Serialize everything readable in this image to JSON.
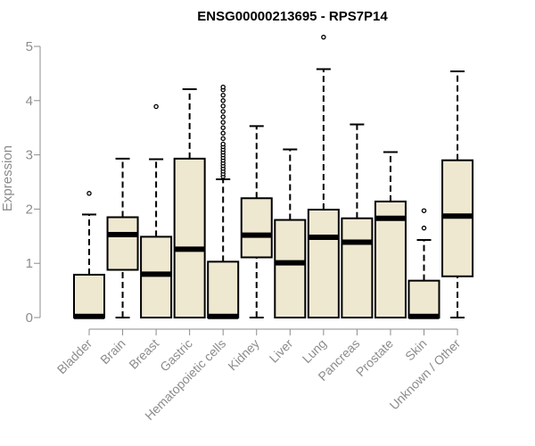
{
  "chart_data": {
    "type": "boxplot",
    "title": "ENSG00000213695 - RPS7P14",
    "xlabel": "",
    "ylabel": "Expression",
    "ylim": [
      0,
      5.1
    ],
    "yticks": [
      0,
      1,
      2,
      3,
      4,
      5
    ],
    "grid": false,
    "categories": [
      "Bladder",
      "Brain",
      "Breast",
      "Gastric",
      "Hematopoietic cells",
      "Kidney",
      "Liver",
      "Lung",
      "Pancreas",
      "Prostate",
      "Skin",
      "Unknown / Other"
    ],
    "boxes": [
      {
        "name": "Bladder",
        "min": 0,
        "q1": 0,
        "median": 0.02,
        "q3": 0.79,
        "max": 1.9,
        "outliers": [
          2.29
        ]
      },
      {
        "name": "Brain",
        "min": 0,
        "q1": 0.88,
        "median": 1.53,
        "q3": 1.85,
        "max": 2.93,
        "outliers": []
      },
      {
        "name": "Breast",
        "min": 0,
        "q1": 0,
        "median": 0.8,
        "q3": 1.49,
        "max": 2.92,
        "outliers": [
          3.89
        ]
      },
      {
        "name": "Gastric",
        "min": 0,
        "q1": 0,
        "median": 1.26,
        "q3": 2.93,
        "max": 4.21,
        "outliers": []
      },
      {
        "name": "Hematopoietic cells",
        "min": 0,
        "q1": 0,
        "median": 0.02,
        "q3": 1.03,
        "max": 2.55,
        "outliers": [
          2.6,
          2.65,
          2.7,
          2.75,
          2.8,
          2.85,
          2.9,
          2.95,
          3.0,
          3.05,
          3.1,
          3.15,
          3.2,
          3.3,
          3.4,
          3.5,
          3.6,
          3.7,
          3.8,
          3.9,
          4.0,
          4.1,
          4.2,
          4.25
        ]
      },
      {
        "name": "Kidney",
        "min": 0,
        "q1": 1.11,
        "median": 1.52,
        "q3": 2.2,
        "max": 3.53,
        "outliers": []
      },
      {
        "name": "Liver",
        "min": 0,
        "q1": 0,
        "median": 1.01,
        "q3": 1.8,
        "max": 3.1,
        "outliers": []
      },
      {
        "name": "Lung",
        "min": 0,
        "q1": 0,
        "median": 1.48,
        "q3": 1.99,
        "max": 4.58,
        "outliers": [
          5.17
        ]
      },
      {
        "name": "Pancreas",
        "min": 0,
        "q1": 0,
        "median": 1.39,
        "q3": 1.83,
        "max": 3.56,
        "outliers": []
      },
      {
        "name": "Prostate",
        "min": 0,
        "q1": 0,
        "median": 1.83,
        "q3": 2.14,
        "max": 3.05,
        "outliers": []
      },
      {
        "name": "Skin",
        "min": 0,
        "q1": 0,
        "median": 0.02,
        "q3": 0.68,
        "max": 1.43,
        "outliers": [
          1.65,
          1.97
        ]
      },
      {
        "name": "Unknown / Other",
        "min": 0,
        "q1": 0.76,
        "median": 1.87,
        "q3": 2.9,
        "max": 4.54,
        "outliers": []
      }
    ]
  }
}
